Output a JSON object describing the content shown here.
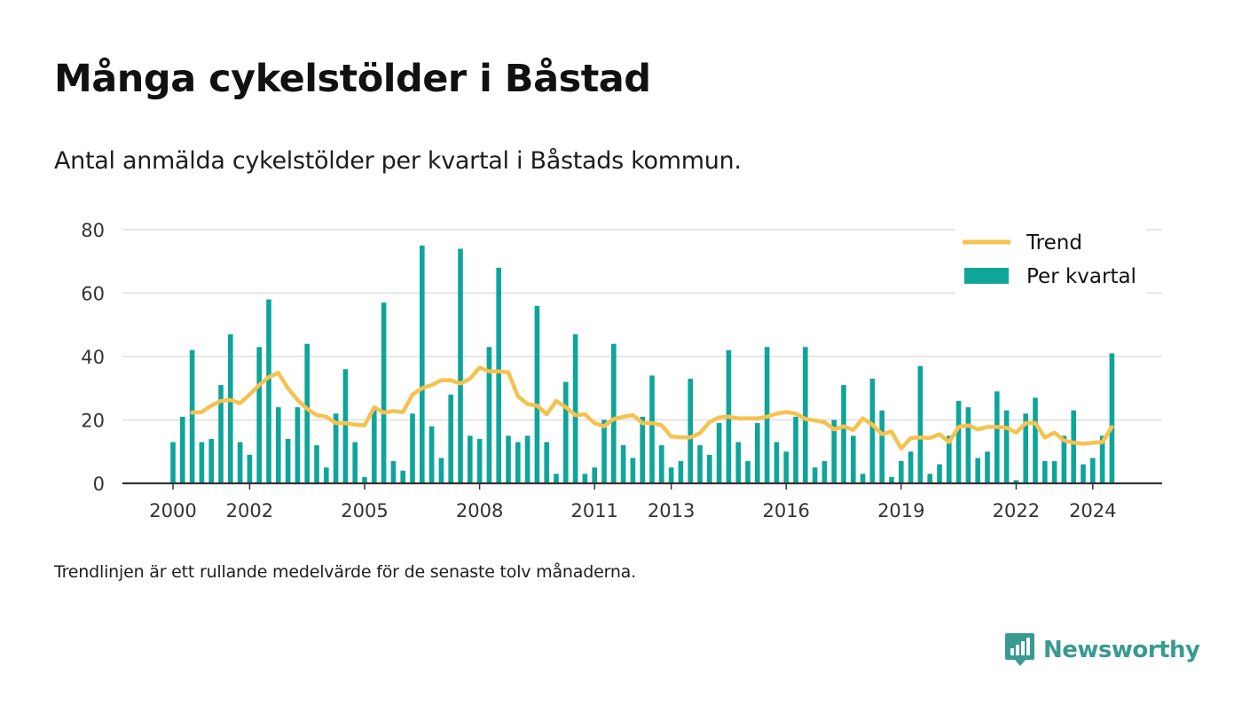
{
  "title": "Många cykelstölder i Båstad",
  "subtitle": "Antal anmälda cykelstölder per kvartal i Båstads kommun.",
  "footnote": "Trendlinjen är ett rullande medelvärde för de senaste tolv månaderna.",
  "brand": {
    "name": "Newsworthy",
    "icon": "newsworthy-logo-icon"
  },
  "colors": {
    "bars": "#0ea59a",
    "trend": "#f5c24f",
    "grid": "#dddddd",
    "axis": "#333333",
    "brand": "#3a9a91"
  },
  "chart_data": {
    "type": "bar",
    "title": "Många cykelstölder i Båstad",
    "subtitle": "Antal anmälda cykelstölder per kvartal i Båstads kommun.",
    "xlabel": "",
    "ylabel": "",
    "ylim": [
      0,
      80
    ],
    "yticks": [
      0,
      20,
      40,
      60,
      80
    ],
    "ytick_labels": [
      "0",
      "20",
      "40",
      "60",
      "80"
    ],
    "xticks": [
      {
        "label": "2000",
        "at": "2000 Q1"
      },
      {
        "label": "2002",
        "at": "2002 Q1"
      },
      {
        "label": "2005",
        "at": "2005 Q1"
      },
      {
        "label": "2008",
        "at": "2008 Q1"
      },
      {
        "label": "2011",
        "at": "2011 Q1"
      },
      {
        "label": "2013",
        "at": "2013 Q1"
      },
      {
        "label": "2016",
        "at": "2016 Q1"
      },
      {
        "label": "2019",
        "at": "2019 Q1"
      },
      {
        "label": "2022",
        "at": "2022 Q1"
      },
      {
        "label": "2024",
        "at": "2024 Q1"
      }
    ],
    "grid": true,
    "legend_position": "top-right",
    "categories": [
      "2000 Q1",
      "2000 Q2",
      "2000 Q3",
      "2000 Q4",
      "2001 Q1",
      "2001 Q2",
      "2001 Q3",
      "2001 Q4",
      "2002 Q1",
      "2002 Q2",
      "2002 Q3",
      "2002 Q4",
      "2003 Q1",
      "2003 Q2",
      "2003 Q3",
      "2003 Q4",
      "2004 Q1",
      "2004 Q2",
      "2004 Q3",
      "2004 Q4",
      "2005 Q1",
      "2005 Q2",
      "2005 Q3",
      "2005 Q4",
      "2006 Q1",
      "2006 Q2",
      "2006 Q3",
      "2006 Q4",
      "2007 Q1",
      "2007 Q2",
      "2007 Q3",
      "2007 Q4",
      "2008 Q1",
      "2008 Q2",
      "2008 Q3",
      "2008 Q4",
      "2009 Q1",
      "2009 Q2",
      "2009 Q3",
      "2009 Q4",
      "2010 Q1",
      "2010 Q2",
      "2010 Q3",
      "2010 Q4",
      "2011 Q1",
      "2011 Q2",
      "2011 Q3",
      "2011 Q4",
      "2012 Q1",
      "2012 Q2",
      "2012 Q3",
      "2012 Q4",
      "2013 Q1",
      "2013 Q2",
      "2013 Q3",
      "2013 Q4",
      "2014 Q1",
      "2014 Q2",
      "2014 Q3",
      "2014 Q4",
      "2015 Q1",
      "2015 Q2",
      "2015 Q3",
      "2015 Q4",
      "2016 Q1",
      "2016 Q2",
      "2016 Q3",
      "2016 Q4",
      "2017 Q1",
      "2017 Q2",
      "2017 Q3",
      "2017 Q4",
      "2018 Q1",
      "2018 Q2",
      "2018 Q3",
      "2018 Q4",
      "2019 Q1",
      "2019 Q2",
      "2019 Q3",
      "2019 Q4",
      "2020 Q1",
      "2020 Q2",
      "2020 Q3",
      "2020 Q4",
      "2021 Q1",
      "2021 Q2",
      "2021 Q3",
      "2021 Q4",
      "2022 Q1",
      "2022 Q2",
      "2022 Q3",
      "2022 Q4",
      "2023 Q1",
      "2023 Q2",
      "2023 Q3",
      "2023 Q4",
      "2024 Q1",
      "2024 Q2",
      "2024 Q3"
    ],
    "series": [
      {
        "name": "Per kvartal",
        "type": "bar",
        "values": [
          13,
          21,
          42,
          13,
          14,
          31,
          47,
          13,
          9,
          43,
          58,
          24,
          14,
          24,
          44,
          12,
          5,
          22,
          36,
          13,
          2,
          23,
          57,
          7,
          4,
          22,
          75,
          18,
          8,
          28,
          74,
          15,
          14,
          43,
          68,
          15,
          13,
          15,
          56,
          13,
          3,
          32,
          47,
          3,
          5,
          20,
          44,
          12,
          8,
          21,
          34,
          12,
          5,
          7,
          33,
          12,
          9,
          19,
          42,
          13,
          7,
          19,
          43,
          13,
          10,
          21,
          43,
          5,
          7,
          20,
          31,
          15,
          3,
          33,
          23,
          2,
          7,
          10,
          37,
          3,
          6,
          15,
          26,
          24,
          8,
          10,
          29,
          23,
          1,
          22,
          27,
          7,
          7,
          15,
          23,
          6,
          8,
          15,
          41
        ]
      },
      {
        "name": "Trend",
        "type": "line",
        "values": [
          null,
          null,
          22.3,
          22.5,
          24.5,
          26,
          26.3,
          25.3,
          28,
          31,
          33.5,
          34.8,
          30,
          26.3,
          23.5,
          21.5,
          21,
          19,
          19,
          18.5,
          18.3,
          24,
          22.3,
          22.8,
          22.5,
          28,
          30,
          31,
          32.5,
          32.5,
          31.5,
          33,
          36.5,
          35.3,
          35.3,
          35,
          27.5,
          25,
          24.5,
          21.8,
          26,
          24,
          21.5,
          21.8,
          19,
          18,
          20.3,
          21,
          21.5,
          19,
          19,
          18.3,
          14.8,
          14.5,
          14.5,
          15.8,
          19.3,
          20.8,
          21,
          20.5,
          20.5,
          20.5,
          21,
          22,
          22.5,
          22,
          20.3,
          19.8,
          19.3,
          17,
          18,
          16.8,
          20.5,
          18.5,
          15.5,
          16.3,
          11,
          14.3,
          14.5,
          14.3,
          15.5,
          13,
          17.8,
          18.3,
          17,
          17.8,
          17.8,
          17.5,
          16,
          19,
          19,
          14.5,
          16,
          13.5,
          12.8,
          12.5,
          12.8,
          13,
          17.8
        ]
      }
    ]
  }
}
